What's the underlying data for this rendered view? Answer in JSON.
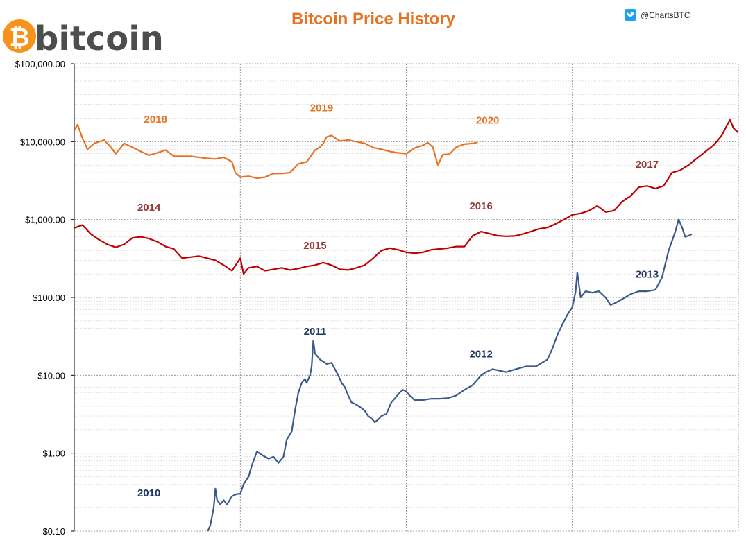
{
  "header": {
    "logo_word": "bitcoin",
    "logo_symbol": "₿",
    "twitter_handle": "@ChartsBTC"
  },
  "colors": {
    "orange": "#e67323",
    "red": "#c00000",
    "blue": "#3a5a8c",
    "logo_orange": "#f7931a",
    "twitter": "#1da1f2",
    "year_label_red": "#953735",
    "year_label_blue": "#1f3864"
  },
  "chart_data": {
    "type": "line",
    "title": "Bitcoin Price History",
    "xlabel": "",
    "ylabel": "",
    "y_scale": "log",
    "ylim": [
      0.1,
      100000
    ],
    "y_ticks": [
      0.1,
      1,
      10,
      100,
      1000,
      10000,
      100000
    ],
    "y_tick_labels": [
      "$0.10",
      "$1.00",
      "$10.00",
      "$100.00",
      "$1,000.00",
      "$10,000.00",
      "$100,000.00"
    ],
    "x_unit": "fraction of a 4-year cycle (0 to 4)",
    "xlim": [
      0,
      4
    ],
    "grid": {
      "major_x": [
        0,
        1,
        2,
        3,
        4
      ],
      "minor_y": true
    },
    "legend": "none",
    "series": [
      {
        "color_key": "blue",
        "years": [
          "2010",
          "2011",
          "2012",
          "2013"
        ],
        "points": [
          [
            0.78,
            0.09
          ],
          [
            0.8,
            0.095
          ],
          [
            0.82,
            0.12
          ],
          [
            0.84,
            0.2
          ],
          [
            0.85,
            0.35
          ],
          [
            0.86,
            0.25
          ],
          [
            0.88,
            0.22
          ],
          [
            0.9,
            0.25
          ],
          [
            0.92,
            0.22
          ],
          [
            0.95,
            0.28
          ],
          [
            0.98,
            0.3
          ],
          [
            1.0,
            0.3
          ],
          [
            1.02,
            0.4
          ],
          [
            1.05,
            0.5
          ],
          [
            1.07,
            0.7
          ],
          [
            1.1,
            1.05
          ],
          [
            1.13,
            0.95
          ],
          [
            1.17,
            0.85
          ],
          [
            1.2,
            0.9
          ],
          [
            1.23,
            0.75
          ],
          [
            1.26,
            0.9
          ],
          [
            1.28,
            1.5
          ],
          [
            1.31,
            1.9
          ],
          [
            1.33,
            3.6
          ],
          [
            1.35,
            6
          ],
          [
            1.37,
            8
          ],
          [
            1.39,
            9
          ],
          [
            1.4,
            8
          ],
          [
            1.42,
            10
          ],
          [
            1.43,
            13
          ],
          [
            1.44,
            28
          ],
          [
            1.45,
            19
          ],
          [
            1.46,
            18
          ],
          [
            1.48,
            16
          ],
          [
            1.5,
            15
          ],
          [
            1.52,
            14
          ],
          [
            1.55,
            14.5
          ],
          [
            1.57,
            12
          ],
          [
            1.59,
            10
          ],
          [
            1.61,
            8
          ],
          [
            1.63,
            7
          ],
          [
            1.65,
            5.5
          ],
          [
            1.67,
            4.5
          ],
          [
            1.7,
            4.2
          ],
          [
            1.73,
            3.8
          ],
          [
            1.75,
            3.5
          ],
          [
            1.77,
            3.0
          ],
          [
            1.79,
            2.8
          ],
          [
            1.81,
            2.5
          ],
          [
            1.83,
            2.7
          ],
          [
            1.85,
            3.0
          ],
          [
            1.88,
            3.2
          ],
          [
            1.91,
            4.5
          ],
          [
            1.94,
            5.3
          ],
          [
            1.96,
            6.0
          ],
          [
            1.98,
            6.5
          ],
          [
            2.0,
            6.2
          ],
          [
            2.02,
            5.5
          ],
          [
            2.05,
            4.8
          ],
          [
            2.1,
            4.8
          ],
          [
            2.15,
            5.0
          ],
          [
            2.2,
            5.0
          ],
          [
            2.25,
            5.1
          ],
          [
            2.3,
            5.5
          ],
          [
            2.35,
            6.5
          ],
          [
            2.4,
            7.5
          ],
          [
            2.45,
            10
          ],
          [
            2.48,
            11
          ],
          [
            2.52,
            12
          ],
          [
            2.56,
            11.5
          ],
          [
            2.6,
            11
          ],
          [
            2.66,
            12
          ],
          [
            2.72,
            13
          ],
          [
            2.78,
            13
          ],
          [
            2.85,
            16
          ],
          [
            2.88,
            22
          ],
          [
            2.91,
            33
          ],
          [
            2.94,
            45
          ],
          [
            2.97,
            60
          ],
          [
            3.0,
            75
          ],
          [
            3.02,
            120
          ],
          [
            3.03,
            210
          ],
          [
            3.05,
            100
          ],
          [
            3.08,
            120
          ],
          [
            3.12,
            115
          ],
          [
            3.16,
            120
          ],
          [
            3.2,
            100
          ],
          [
            3.23,
            80
          ],
          [
            3.26,
            85
          ],
          [
            3.3,
            95
          ],
          [
            3.35,
            110
          ],
          [
            3.4,
            120
          ],
          [
            3.45,
            120
          ],
          [
            3.5,
            125
          ],
          [
            3.54,
            180
          ],
          [
            3.58,
            400
          ],
          [
            3.62,
            700
          ],
          [
            3.64,
            1000
          ],
          [
            3.66,
            800
          ],
          [
            3.68,
            600
          ],
          [
            3.7,
            620
          ],
          [
            3.72,
            650
          ]
        ]
      },
      {
        "color_key": "red",
        "years": [
          "2014",
          "2015",
          "2016",
          "2017"
        ],
        "points": [
          [
            0.0,
            780
          ],
          [
            0.05,
            850
          ],
          [
            0.1,
            650
          ],
          [
            0.15,
            550
          ],
          [
            0.2,
            480
          ],
          [
            0.25,
            440
          ],
          [
            0.3,
            480
          ],
          [
            0.35,
            580
          ],
          [
            0.4,
            600
          ],
          [
            0.45,
            570
          ],
          [
            0.5,
            520
          ],
          [
            0.55,
            450
          ],
          [
            0.6,
            420
          ],
          [
            0.65,
            320
          ],
          [
            0.7,
            330
          ],
          [
            0.75,
            340
          ],
          [
            0.8,
            320
          ],
          [
            0.85,
            300
          ],
          [
            0.9,
            260
          ],
          [
            0.95,
            220
          ],
          [
            1.0,
            320
          ],
          [
            1.02,
            200
          ],
          [
            1.05,
            240
          ],
          [
            1.1,
            250
          ],
          [
            1.15,
            220
          ],
          [
            1.2,
            230
          ],
          [
            1.25,
            240
          ],
          [
            1.3,
            225
          ],
          [
            1.35,
            235
          ],
          [
            1.4,
            250
          ],
          [
            1.45,
            260
          ],
          [
            1.5,
            280
          ],
          [
            1.55,
            260
          ],
          [
            1.6,
            230
          ],
          [
            1.65,
            225
          ],
          [
            1.7,
            240
          ],
          [
            1.75,
            260
          ],
          [
            1.8,
            320
          ],
          [
            1.85,
            400
          ],
          [
            1.9,
            430
          ],
          [
            1.95,
            410
          ],
          [
            2.0,
            380
          ],
          [
            2.05,
            370
          ],
          [
            2.1,
            380
          ],
          [
            2.15,
            410
          ],
          [
            2.2,
            420
          ],
          [
            2.25,
            430
          ],
          [
            2.3,
            450
          ],
          [
            2.35,
            450
          ],
          [
            2.4,
            620
          ],
          [
            2.45,
            700
          ],
          [
            2.5,
            660
          ],
          [
            2.55,
            620
          ],
          [
            2.6,
            610
          ],
          [
            2.65,
            615
          ],
          [
            2.7,
            650
          ],
          [
            2.75,
            700
          ],
          [
            2.8,
            760
          ],
          [
            2.85,
            790
          ],
          [
            2.9,
            880
          ],
          [
            2.95,
            1000
          ],
          [
            3.0,
            1150
          ],
          [
            3.05,
            1200
          ],
          [
            3.1,
            1300
          ],
          [
            3.15,
            1500
          ],
          [
            3.2,
            1250
          ],
          [
            3.25,
            1300
          ],
          [
            3.3,
            1700
          ],
          [
            3.35,
            2000
          ],
          [
            3.4,
            2600
          ],
          [
            3.45,
            2700
          ],
          [
            3.5,
            2500
          ],
          [
            3.55,
            2700
          ],
          [
            3.6,
            4000
          ],
          [
            3.65,
            4300
          ],
          [
            3.7,
            5000
          ],
          [
            3.75,
            6100
          ],
          [
            3.8,
            7400
          ],
          [
            3.85,
            9000
          ],
          [
            3.9,
            12000
          ],
          [
            3.93,
            16000
          ],
          [
            3.95,
            19000
          ],
          [
            3.97,
            15000
          ],
          [
            4.0,
            13000
          ]
        ]
      },
      {
        "color_key": "orange",
        "years": [
          "2018",
          "2019",
          "2020"
        ],
        "points": [
          [
            0.0,
            14000
          ],
          [
            0.02,
            16500
          ],
          [
            0.05,
            11000
          ],
          [
            0.08,
            8000
          ],
          [
            0.12,
            9500
          ],
          [
            0.18,
            10500
          ],
          [
            0.22,
            8500
          ],
          [
            0.25,
            7000
          ],
          [
            0.3,
            9500
          ],
          [
            0.35,
            8500
          ],
          [
            0.4,
            7500
          ],
          [
            0.45,
            6700
          ],
          [
            0.5,
            7200
          ],
          [
            0.55,
            7800
          ],
          [
            0.6,
            6500
          ],
          [
            0.65,
            6500
          ],
          [
            0.7,
            6500
          ],
          [
            0.75,
            6300
          ],
          [
            0.8,
            6100
          ],
          [
            0.85,
            6000
          ],
          [
            0.9,
            6300
          ],
          [
            0.95,
            5500
          ],
          [
            0.97,
            4000
          ],
          [
            1.0,
            3500
          ],
          [
            1.05,
            3600
          ],
          [
            1.1,
            3400
          ],
          [
            1.15,
            3500
          ],
          [
            1.2,
            3900
          ],
          [
            1.25,
            3900
          ],
          [
            1.3,
            4000
          ],
          [
            1.35,
            5200
          ],
          [
            1.4,
            5500
          ],
          [
            1.45,
            7800
          ],
          [
            1.48,
            8500
          ],
          [
            1.5,
            9500
          ],
          [
            1.52,
            11500
          ],
          [
            1.55,
            12000
          ],
          [
            1.6,
            10200
          ],
          [
            1.65,
            10500
          ],
          [
            1.7,
            10000
          ],
          [
            1.75,
            9500
          ],
          [
            1.8,
            8400
          ],
          [
            1.85,
            8000
          ],
          [
            1.9,
            7500
          ],
          [
            1.95,
            7200
          ],
          [
            2.0,
            7000
          ],
          [
            2.05,
            8300
          ],
          [
            2.1,
            9000
          ],
          [
            2.13,
            9700
          ],
          [
            2.16,
            8500
          ],
          [
            2.19,
            5000
          ],
          [
            2.22,
            6800
          ],
          [
            2.26,
            6900
          ],
          [
            2.3,
            8500
          ],
          [
            2.35,
            9300
          ],
          [
            2.4,
            9500
          ],
          [
            2.43,
            9800
          ]
        ]
      }
    ],
    "annotations": [
      {
        "text": "2010",
        "x": 0.45,
        "y": 0.28,
        "color_key": "year_label_blue"
      },
      {
        "text": "2011",
        "x": 1.45,
        "y": 33,
        "color_key": "year_label_blue"
      },
      {
        "text": "2012",
        "x": 2.45,
        "y": 17,
        "color_key": "year_label_blue"
      },
      {
        "text": "2013",
        "x": 3.45,
        "y": 180,
        "color_key": "year_label_blue"
      },
      {
        "text": "2014",
        "x": 0.45,
        "y": 1300,
        "color_key": "year_label_red"
      },
      {
        "text": "2015",
        "x": 1.45,
        "y": 420,
        "color_key": "year_label_red"
      },
      {
        "text": "2016",
        "x": 2.45,
        "y": 1350,
        "color_key": "year_label_red"
      },
      {
        "text": "2017",
        "x": 3.45,
        "y": 4600,
        "color_key": "year_label_red"
      },
      {
        "text": "2018",
        "x": 0.49,
        "y": 17500,
        "color_key": "orange"
      },
      {
        "text": "2019",
        "x": 1.49,
        "y": 24500,
        "color_key": "orange"
      },
      {
        "text": "2020",
        "x": 2.49,
        "y": 17000,
        "color_key": "orange"
      }
    ]
  }
}
